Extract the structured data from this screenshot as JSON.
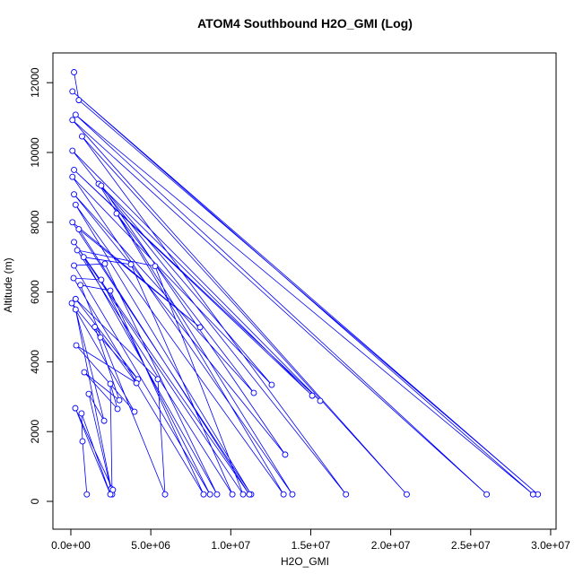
{
  "chart_data": {
    "type": "scatter-line",
    "title": "ATOM4 Southbound H2O_GMI (Log)",
    "x_label": "H2O_GMI",
    "y_label": "Altitude (m)",
    "color": "#0000ff",
    "xlim": [
      -1120000,
      30340000
    ],
    "ylim": [
      -797,
      12853
    ],
    "xticks": [
      {
        "value": 0,
        "label": "0.0e+00"
      },
      {
        "value": 5000000,
        "label": "5.0e+06"
      },
      {
        "value": 10000000,
        "label": "1.0e+07"
      },
      {
        "value": 15000000,
        "label": "1.5e+07"
      },
      {
        "value": 20000000,
        "label": "2.0e+07"
      },
      {
        "value": 25000000,
        "label": "2.5e+07"
      },
      {
        "value": 30000000,
        "label": "3.0e+07"
      }
    ],
    "yticks": [
      0,
      2000,
      4000,
      6000,
      8000,
      10000,
      12000
    ],
    "x": [
      200000,
      500000,
      29200000,
      100000,
      28900000,
      300000,
      26000000,
      100000,
      21000000,
      700000,
      17200000,
      100000,
      15590000,
      200000,
      15090000,
      1740000,
      13850000,
      100000,
      12560000,
      1900000,
      13400000,
      200000,
      11440000,
      2860000,
      13300000,
      300000,
      11270000,
      100000,
      8080000,
      500000,
      11160000,
      200000,
      10770000,
      5270000,
      400000,
      10100000,
      3760000,
      800000,
      9140000,
      2130000,
      200000,
      8700000,
      1900000,
      170000,
      8300000,
      2470000,
      600000,
      5890000,
      5440000,
      300000,
      4200000,
      1850000,
      60000,
      3980000,
      340000,
      4100000,
      1500000,
      3030000,
      840000,
      2920000,
      2470000,
      2580000,
      1120000,
      2080000,
      300000,
      2520000,
      2630000,
      280000,
      2470000,
      670000,
      730000,
      1000000
    ],
    "values": [
      12300,
      11500,
      200,
      11750,
      200,
      11080,
      200,
      10930,
      200,
      10460,
      200,
      10050,
      2880,
      9500,
      3030,
      9100,
      200,
      9300,
      3340,
      9050,
      1340,
      8800,
      3110,
      8250,
      200,
      8500,
      200,
      8000,
      4990,
      7800,
      200,
      7430,
      200,
      6740,
      7200,
      200,
      6790,
      7000,
      200,
      6810,
      6760,
      200,
      6350,
      6400,
      200,
      6040,
      6200,
      200,
      3500,
      5800,
      3500,
      4700,
      5680,
      2570,
      4470,
      3390,
      5000,
      2900,
      3700,
      2650,
      3370,
      200,
      3080,
      2310,
      5500,
      360,
      330,
      2670,
      200,
      2520,
      1720,
      200
    ]
  }
}
